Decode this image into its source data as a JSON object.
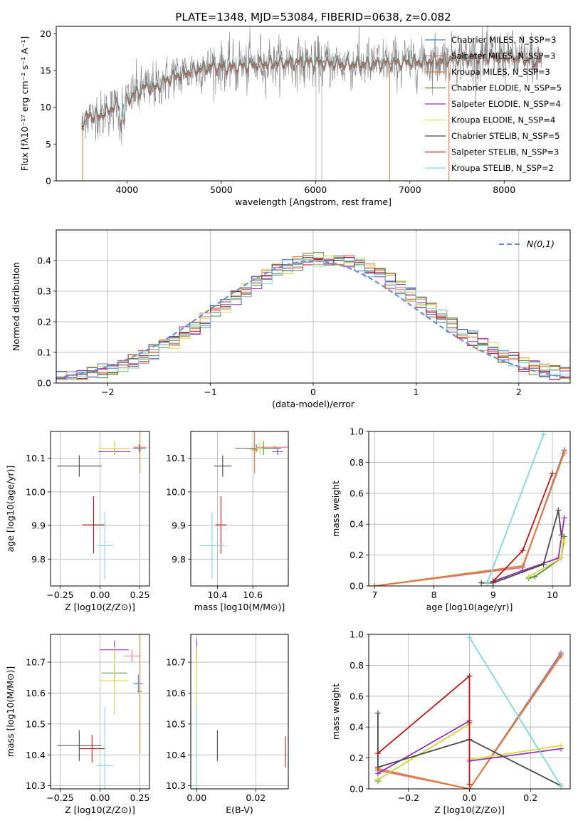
{
  "colors": {
    "Chabrier MILES": "#4f7fcf",
    "Salpeter MILES": "#e8747c",
    "Kroupa MILES": "#e07b2e",
    "Chabrier ELODIE": "#4c8a3d",
    "Salpeter ELODIE": "#9a2fb5",
    "Kroupa ELODIE": "#d8dc40",
    "Chabrier STELIB": "#4a4a4a",
    "Salpeter STELIB": "#b51a1a",
    "Kroupa STELIB": "#7ed8df",
    "data": "#808080",
    "gaussian": "#6a8fd8"
  },
  "chart_data": [
    {
      "id": "spectrum",
      "type": "line",
      "title": "PLATE=1348, MJD=53084, FIBERID=0638, z=0.082",
      "xlabel": "wavelength [Angstrom, rest frame]",
      "ylabel": "Flux [fλ10⁻¹⁷ erg cm⁻² s⁻¹ A⁻¹]",
      "xlim": [
        3250,
        8700
      ],
      "ylim": [
        0,
        21
      ],
      "xticks": [
        4000,
        5000,
        6000,
        7000,
        8000
      ],
      "yticks": [
        0,
        5,
        10,
        15,
        20
      ],
      "legend_position": "right",
      "legend": [
        "Chabrier MILES, N_SSP=3",
        "Salpeter MILES, N_SSP=3",
        "Kroupa MILES, N_SSP=3",
        "Chabrier ELODIE, N_SSP=5",
        "Salpeter ELODIE, N_SSP=4",
        "Kroupa ELODIE, N_SSP=4",
        "Chabrier STELIB, N_SSP=5",
        "Salpeter STELIB, N_SSP=3",
        "Kroupa STELIB, N_SSP=2"
      ],
      "continuum": [
        [
          3520,
          7.8
        ],
        [
          3600,
          9.0
        ],
        [
          3700,
          8.8
        ],
        [
          3800,
          9.6
        ],
        [
          3900,
          10.3
        ],
        [
          4000,
          11.0
        ],
        [
          4100,
          12.0
        ],
        [
          4200,
          12.8
        ],
        [
          4300,
          12.6
        ],
        [
          4400,
          13.6
        ],
        [
          4500,
          14.2
        ],
        [
          4600,
          14.6
        ],
        [
          4700,
          15.0
        ],
        [
          4800,
          15.3
        ],
        [
          4900,
          15.6
        ],
        [
          5000,
          15.5
        ],
        [
          5100,
          15.4
        ],
        [
          5200,
          15.6
        ],
        [
          5300,
          15.7
        ],
        [
          5400,
          15.9
        ],
        [
          5500,
          16.0
        ],
        [
          5700,
          16.1
        ],
        [
          5900,
          16.1
        ],
        [
          6100,
          16.0
        ],
        [
          6300,
          15.9
        ],
        [
          6500,
          15.9
        ],
        [
          6700,
          15.9
        ],
        [
          6900,
          16.1
        ],
        [
          7100,
          16.2
        ],
        [
          7300,
          16.4
        ],
        [
          7500,
          16.7
        ],
        [
          7700,
          16.8
        ],
        [
          7900,
          16.9
        ],
        [
          8100,
          16.8
        ],
        [
          8300,
          16.4
        ],
        [
          8400,
          16.3
        ]
      ]
    },
    {
      "id": "residuals",
      "type": "histogram",
      "xlabel": "(data-model)/error",
      "ylabel": "Normed distribution",
      "xlim": [
        -2.5,
        2.5
      ],
      "ylim": [
        0,
        0.5
      ],
      "xticks": [
        -2,
        -1,
        0,
        1,
        2
      ],
      "yticks": [
        0.0,
        0.1,
        0.2,
        0.3,
        0.4
      ],
      "legend": [
        "N(0,1)"
      ],
      "legend_position": "upper right",
      "bin_width": 0.1,
      "grid": true
    },
    {
      "id": "age-metal",
      "type": "scatter-errorbar",
      "xlabel": "Z [log10(Z/Z⊙)]",
      "ylabel": "age  [log10(age/yr)]",
      "xlim": [
        -0.31,
        0.31
      ],
      "ylim": [
        9.72,
        10.18
      ],
      "xticks": [
        -0.25,
        0.0,
        0.25
      ],
      "yticks": [
        9.8,
        9.9,
        10.0,
        10.1
      ],
      "points": [
        {
          "model": "Chabrier MILES",
          "x": 0.245,
          "y": 10.13,
          "xerr": 0.04,
          "yerr": 0.012
        },
        {
          "model": "Salpeter MILES",
          "x": 0.25,
          "y": 10.133,
          "xerr": 0.04,
          "yerr": 0.005
        },
        {
          "model": "Kroupa MILES",
          "x": 0.25,
          "y": 10.125,
          "xerr": 0.01,
          "yerr": 0.07
        },
        {
          "model": "Chabrier ELODIE",
          "x": 0.09,
          "y": 10.13,
          "xerr": 0.09,
          "yerr": 0.02
        },
        {
          "model": "Salpeter ELODIE",
          "x": 0.09,
          "y": 10.12,
          "xerr": 0.1,
          "yerr": 0.01
        },
        {
          "model": "Kroupa ELODIE",
          "x": 0.09,
          "y": 10.13,
          "xerr": 0.1,
          "yerr": 0.02
        },
        {
          "model": "Chabrier STELIB",
          "x": -0.13,
          "y": 10.077,
          "xerr": 0.14,
          "yerr": 0.032
        },
        {
          "model": "Salpeter STELIB",
          "x": -0.04,
          "y": 9.902,
          "xerr": 0.07,
          "yerr": 0.085
        },
        {
          "model": "Kroupa STELIB",
          "x": 0.03,
          "y": 9.84,
          "xerr": 0.05,
          "yerr": 0.1
        }
      ]
    },
    {
      "id": "age-mass",
      "type": "scatter-errorbar",
      "xlabel": "mass [log10(M/M⊙)]",
      "ylabel": "",
      "xlim": [
        10.25,
        10.8
      ],
      "ylim": [
        9.72,
        10.18
      ],
      "xticks": [
        10.4,
        10.6
      ],
      "yticks": [
        9.8,
        9.9,
        10.0,
        10.1
      ],
      "points": [
        {
          "model": "Chabrier MILES",
          "x": 10.62,
          "y": 10.13,
          "xerr": 0.12,
          "yerr": 0.012
        },
        {
          "model": "Salpeter MILES",
          "x": 10.72,
          "y": 10.133,
          "xerr": 0.1,
          "yerr": 0.005
        },
        {
          "model": "Kroupa MILES",
          "x": 10.61,
          "y": 10.125,
          "xerr": 0.02,
          "yerr": 0.07
        },
        {
          "model": "Chabrier ELODIE",
          "x": 10.66,
          "y": 10.13,
          "xerr": 0.1,
          "yerr": 0.02
        },
        {
          "model": "Salpeter ELODIE",
          "x": 10.74,
          "y": 10.12,
          "xerr": 0.03,
          "yerr": 0.01
        },
        {
          "model": "Kroupa ELODIE",
          "x": 10.64,
          "y": 10.13,
          "xerr": 0.02,
          "yerr": 0.02
        },
        {
          "model": "Chabrier STELIB",
          "x": 10.43,
          "y": 10.077,
          "xerr": 0.05,
          "yerr": 0.032
        },
        {
          "model": "Salpeter STELIB",
          "x": 10.42,
          "y": 9.902,
          "xerr": 0.03,
          "yerr": 0.085
        },
        {
          "model": "Kroupa STELIB",
          "x": 10.37,
          "y": 9.84,
          "xerr": 0.07,
          "yerr": 0.1
        }
      ]
    },
    {
      "id": "mw-age",
      "type": "line",
      "xlabel": "age  [log10(age/yr)]",
      "ylabel": "mass weight",
      "xlim": [
        6.9,
        10.3
      ],
      "ylim": [
        0,
        1
      ],
      "xticks": [
        7,
        8,
        9,
        10
      ],
      "yticks": [
        0.0,
        0.2,
        0.4,
        0.6,
        0.8,
        1.0
      ],
      "grid": true,
      "series": [
        {
          "model": "Chabrier MILES",
          "x": [
            7.0,
            9.5,
            10.2
          ],
          "y": [
            0.0,
            0.12,
            0.88
          ]
        },
        {
          "model": "Salpeter MILES",
          "x": [
            7.0,
            9.5,
            10.2
          ],
          "y": [
            0.0,
            0.12,
            0.87
          ]
        },
        {
          "model": "Kroupa MILES",
          "x": [
            7.0,
            9.5,
            10.2
          ],
          "y": [
            0.0,
            0.13,
            0.86
          ]
        },
        {
          "model": "Chabrier ELODIE",
          "x": [
            9.6,
            9.7,
            10.15,
            10.2
          ],
          "y": [
            0.05,
            0.06,
            0.18,
            0.32
          ]
        },
        {
          "model": "Salpeter ELODIE",
          "x": [
            9.0,
            9.5,
            10.1,
            10.2
          ],
          "y": [
            0.03,
            0.1,
            0.18,
            0.44
          ]
        },
        {
          "model": "Kroupa ELODIE",
          "x": [
            9.6,
            10.15,
            10.18,
            10.2
          ],
          "y": [
            0.06,
            0.18,
            0.3,
            0.28
          ]
        },
        {
          "model": "Chabrier STELIB",
          "x": [
            8.8,
            9.0,
            9.85,
            10.1,
            10.15
          ],
          "y": [
            0.02,
            0.02,
            0.14,
            0.49,
            0.33
          ]
        },
        {
          "model": "Salpeter STELIB",
          "x": [
            9.0,
            9.5,
            10.0
          ],
          "y": [
            0.03,
            0.23,
            0.73
          ]
        },
        {
          "model": "Kroupa STELIB",
          "x": [
            8.9,
            9.85
          ],
          "y": [
            0.02,
            0.98
          ]
        }
      ]
    },
    {
      "id": "mass-metal",
      "type": "scatter-errorbar",
      "xlabel": "Z [log10(Z/Z⊙)]",
      "ylabel": "mass [log10(M/M⊙)]",
      "xlim": [
        -0.31,
        0.31
      ],
      "ylim": [
        10.29,
        10.79
      ],
      "xticks": [
        -0.25,
        0.0,
        0.25
      ],
      "yticks": [
        10.3,
        10.4,
        10.5,
        10.6,
        10.7
      ],
      "points": [
        {
          "model": "Chabrier MILES",
          "x": 0.24,
          "y": 10.63,
          "xerr": 0.03,
          "yerr": 0.03
        },
        {
          "model": "Salpeter MILES",
          "x": 0.2,
          "y": 10.72,
          "xerr": 0.05,
          "yerr": 0.02
        },
        {
          "model": "Kroupa MILES",
          "x": 0.25,
          "y": 10.605,
          "xerr": 0.015,
          "yerr": 0.2
        },
        {
          "model": "Chabrier ELODIE",
          "x": 0.09,
          "y": 10.665,
          "xerr": 0.08,
          "yerr": 0.03
        },
        {
          "model": "Salpeter ELODIE",
          "x": 0.09,
          "y": 10.74,
          "xerr": 0.09,
          "yerr": 0.03
        },
        {
          "model": "Kroupa ELODIE",
          "x": 0.09,
          "y": 10.64,
          "xerr": 0.09,
          "yerr": 0.11
        },
        {
          "model": "Chabrier STELIB",
          "x": -0.13,
          "y": 10.43,
          "xerr": 0.14,
          "yerr": 0.05
        },
        {
          "model": "Salpeter STELIB",
          "x": -0.05,
          "y": 10.42,
          "xerr": 0.08,
          "yerr": 0.045
        },
        {
          "model": "Kroupa STELIB",
          "x": 0.03,
          "y": 10.365,
          "xerr": 0.05,
          "yerr": 0.19
        }
      ]
    },
    {
      "id": "mass-ebv",
      "type": "scatter-errorbar",
      "xlabel": "E(B-V)",
      "ylabel": "",
      "xlim": [
        -0.002,
        0.031
      ],
      "ylim": [
        10.29,
        10.79
      ],
      "xticks": [
        0.0,
        0.02
      ],
      "yticks": [
        10.3,
        10.4,
        10.5,
        10.6,
        10.7
      ],
      "points": [
        {
          "model": "Salpeter ELODIE",
          "x": 0.0,
          "y": 10.74,
          "xerr": 0,
          "yerr": 0.035
        },
        {
          "model": "Kroupa ELODIE",
          "x": 0.0,
          "y": 10.64,
          "xerr": 0,
          "yerr": 0.11
        },
        {
          "model": "Kroupa STELIB",
          "x": 0.0,
          "y": 10.365,
          "xerr": 0,
          "yerr": 0.19
        },
        {
          "model": "Chabrier STELIB",
          "x": 0.007,
          "y": 10.43,
          "xerr": 0,
          "yerr": 0.05
        },
        {
          "model": "Salpeter STELIB",
          "x": 0.03,
          "y": 10.41,
          "xerr": 0,
          "yerr": 0.05
        }
      ]
    },
    {
      "id": "mw-metal",
      "type": "line",
      "xlabel": "Z [log10(Z/Z⊙)]",
      "ylabel": "mass weight",
      "xlim": [
        -0.33,
        0.33
      ],
      "ylim": [
        0,
        1
      ],
      "xticks": [
        -0.2,
        0.0,
        0.2
      ],
      "yticks": [
        0.0,
        0.2,
        0.4,
        0.6,
        0.8,
        1.0
      ],
      "grid": true,
      "series": [
        {
          "model": "Chabrier MILES",
          "x": [
            -0.3,
            0.0,
            0.3
          ],
          "y": [
            0.12,
            0.0,
            0.88
          ]
        },
        {
          "model": "Salpeter MILES",
          "x": [
            -0.3,
            0.0,
            0.3
          ],
          "y": [
            0.12,
            0.0,
            0.87
          ]
        },
        {
          "model": "Kroupa MILES",
          "x": [
            -0.3,
            0.0,
            0.3
          ],
          "y": [
            0.13,
            0.0,
            0.86
          ]
        },
        {
          "model": "Chabrier ELODIE",
          "x": [
            -0.3,
            -0.3,
            0.0,
            0.0
          ],
          "y": [
            0.05,
            0.06,
            0.42,
            0.43
          ]
        },
        {
          "model": "Salpeter ELODIE",
          "x": [
            -0.3,
            0.0,
            0.0,
            0.3
          ],
          "y": [
            0.1,
            0.44,
            0.18,
            0.26
          ]
        },
        {
          "model": "Kroupa ELODIE",
          "x": [
            -0.3,
            0.0,
            0.0,
            0.3
          ],
          "y": [
            0.06,
            0.42,
            0.19,
            0.28
          ]
        },
        {
          "model": "Chabrier STELIB",
          "x": [
            -0.3,
            -0.3,
            0.0,
            0.3
          ],
          "y": [
            0.49,
            0.14,
            0.32,
            0.02
          ]
        },
        {
          "model": "Salpeter STELIB",
          "x": [
            -0.3,
            0.0,
            0.0
          ],
          "y": [
            0.23,
            0.73,
            0.03
          ]
        },
        {
          "model": "Kroupa STELIB",
          "x": [
            0.0,
            0.3
          ],
          "y": [
            0.98,
            0.02
          ]
        }
      ]
    }
  ]
}
